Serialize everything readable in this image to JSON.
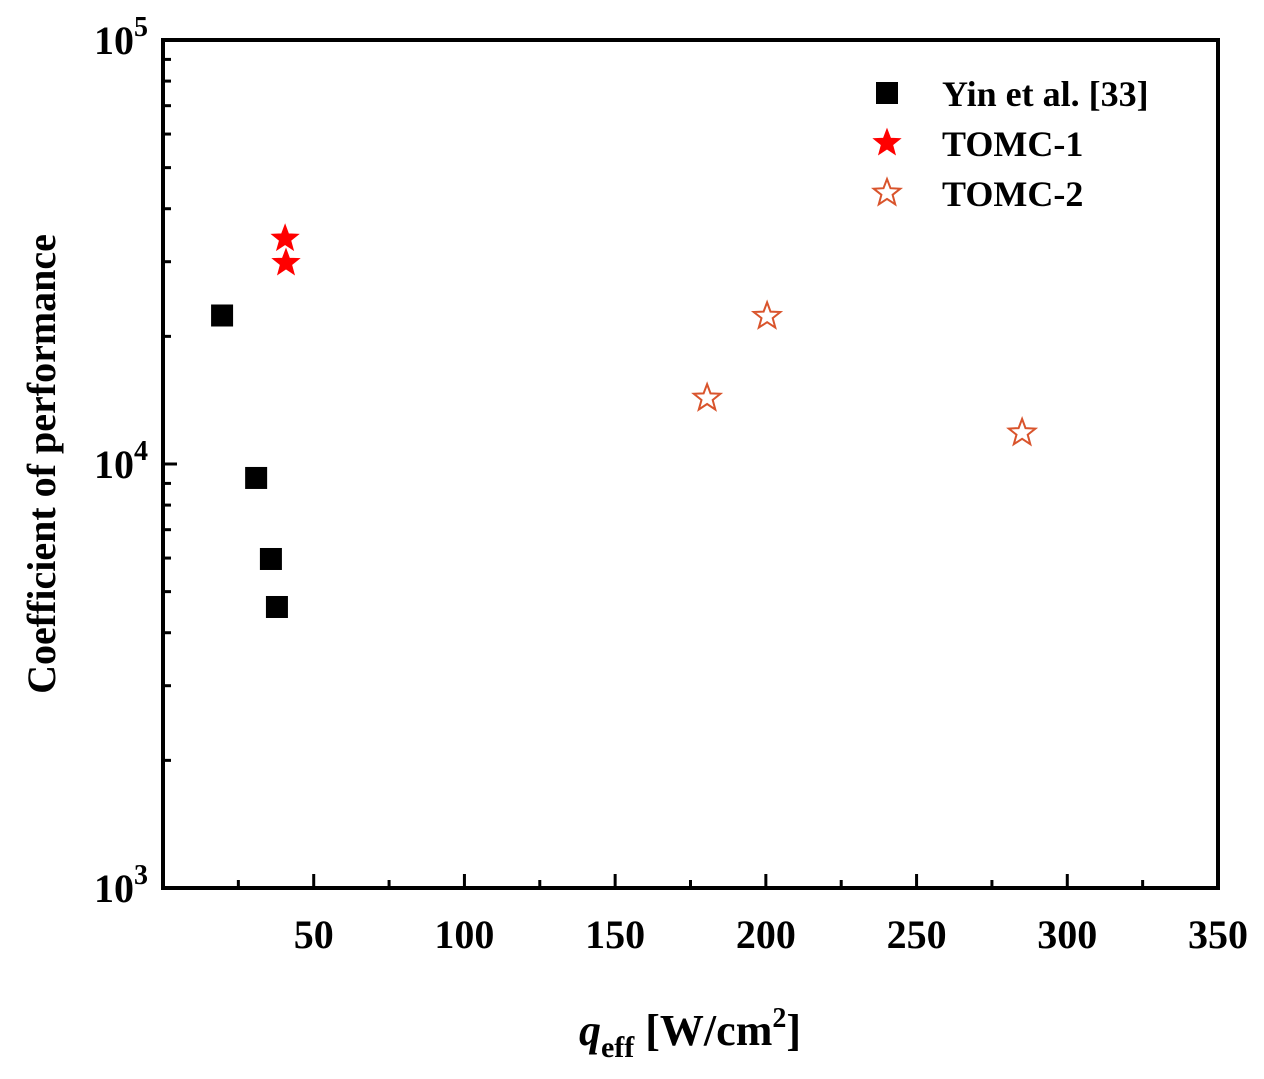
{
  "chart_data": {
    "type": "scatter",
    "title": "",
    "xlabel": {
      "main": "q",
      "sub": "eff",
      "unit_pre": " [W/cm",
      "unit_sup": "2",
      "unit_post": "]"
    },
    "ylabel": "Coefficient of performance",
    "xlim": [
      0,
      350
    ],
    "ylim": [
      1000,
      100000
    ],
    "yscale": "log",
    "xticks": [
      50,
      100,
      150,
      200,
      250,
      300,
      350
    ],
    "xtick_labels": [
      "50",
      "100",
      "150",
      "200",
      "250",
      "300",
      "350"
    ],
    "yticks": [
      1000,
      10000,
      100000
    ],
    "ytick_labels": [
      {
        "base": "10",
        "exp": "3"
      },
      {
        "base": "10",
        "exp": "4"
      },
      {
        "base": "10",
        "exp": "5"
      }
    ],
    "legend_position": "top-right",
    "grid": false,
    "series": [
      {
        "name": "Yin et al. [33]",
        "marker": "square",
        "color": "#000000",
        "filled": true,
        "x": [
          19.6,
          30.9,
          35.8,
          37.8
        ],
        "y": [
          22400,
          9270,
          5970,
          4600
        ]
      },
      {
        "name": "TOMC-1",
        "marker": "star",
        "color": "#ff0000",
        "filled": true,
        "x": [
          40.5,
          40.8
        ],
        "y": [
          34000,
          29800
        ]
      },
      {
        "name": "TOMC-2",
        "marker": "star",
        "color": "#d9542c",
        "filled": false,
        "x": [
          180.5,
          200.4,
          285
        ],
        "y": [
          14300,
          22300,
          11840
        ]
      }
    ]
  }
}
